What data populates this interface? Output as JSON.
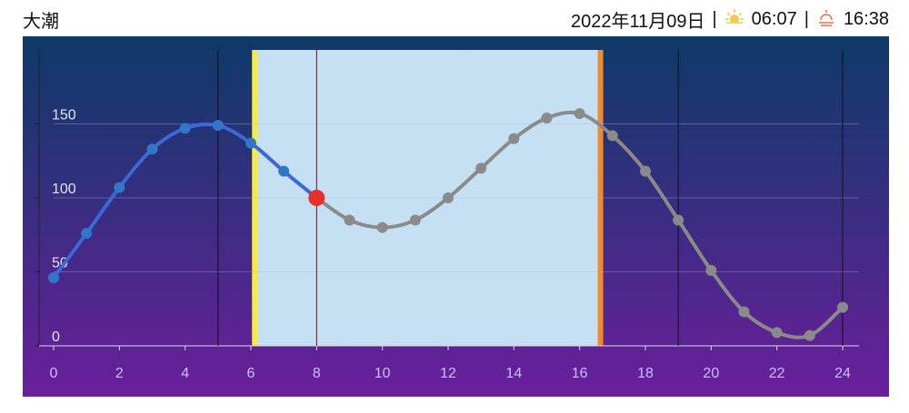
{
  "header": {
    "title": "大潮",
    "date": "2022年11月09日",
    "separator": "|",
    "sunrise": "06:07",
    "sunset": "16:38"
  },
  "chart_data": {
    "type": "line",
    "x": [
      0,
      1,
      2,
      3,
      4,
      5,
      6,
      7,
      8,
      9,
      10,
      11,
      12,
      13,
      14,
      15,
      16,
      17,
      18,
      19,
      20,
      21,
      22,
      23,
      24
    ],
    "series": [
      {
        "values": [
          46,
          76,
          107,
          133,
          147,
          149,
          137,
          118,
          100,
          85,
          80,
          85,
          100,
          120,
          140,
          154,
          157,
          142,
          118,
          85,
          51,
          23,
          9,
          7,
          26
        ]
      }
    ],
    "past_color": "#3b6ad6",
    "future_color": "#8a8a8a",
    "current_color": "#e8302a",
    "current": 8,
    "reference_lines": [
      5,
      19,
      24
    ],
    "xlim": [
      0,
      24
    ],
    "xticks": [
      0,
      2,
      4,
      6,
      8,
      10,
      12,
      14,
      16,
      18,
      20,
      22,
      24
    ],
    "ylim": [
      0,
      200
    ],
    "yticks": [
      0,
      50,
      100,
      150
    ],
    "grid": true
  }
}
